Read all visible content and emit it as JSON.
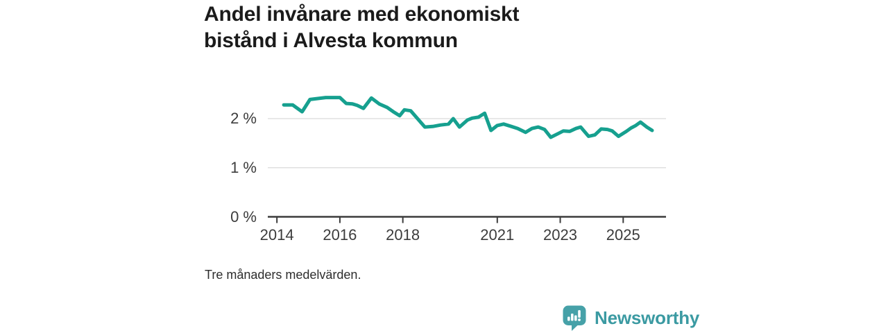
{
  "header": {
    "title_line1": "Andel invånare med ekonomiskt",
    "title_line2": "bistånd i Alvesta kommun"
  },
  "footnote": "Tre månaders medelvärden.",
  "branding": {
    "name": "Newsworthy",
    "icon": "newsworthy-speech-bubble-bar-chart-icon",
    "bubble_color": "#46a1a8",
    "text_color": "#3b9aa2"
  },
  "chart_data": {
    "type": "line",
    "title": "Andel invånare med ekonomiskt bistånd i Alvesta kommun",
    "unit": "%",
    "note": "Tre månaders medelvärden.",
    "legend": "none",
    "grid": "horizontal",
    "x_range": [
      2013.71,
      2026.36
    ],
    "y_range": [
      0,
      2.85
    ],
    "x_ticks": [
      {
        "value": 2014,
        "label": "2014"
      },
      {
        "value": 2016,
        "label": "2016"
      },
      {
        "value": 2018,
        "label": "2018"
      },
      {
        "value": 2021,
        "label": "2021"
      },
      {
        "value": 2023,
        "label": "2023"
      },
      {
        "value": 2025,
        "label": "2025"
      }
    ],
    "y_ticks": [
      {
        "value": 0,
        "label": "0 %"
      },
      {
        "value": 1,
        "label": "1 %"
      },
      {
        "value": 2,
        "label": "2 %"
      }
    ],
    "line_color": "#16a08f",
    "grid_color": "#d9d9d9",
    "axis_color": "#3b3b3b",
    "series": [
      {
        "name": "Andel invånare med ekonomiskt bistånd",
        "points": [
          [
            2014.22,
            2.28
          ],
          [
            2014.5,
            2.28
          ],
          [
            2014.65,
            2.21
          ],
          [
            2014.8,
            2.14
          ],
          [
            2015.05,
            2.39
          ],
          [
            2015.3,
            2.41
          ],
          [
            2015.55,
            2.43
          ],
          [
            2016.0,
            2.43
          ],
          [
            2016.2,
            2.31
          ],
          [
            2016.4,
            2.3
          ],
          [
            2016.55,
            2.27
          ],
          [
            2016.75,
            2.21
          ],
          [
            2017.0,
            2.42
          ],
          [
            2017.25,
            2.3
          ],
          [
            2017.5,
            2.23
          ],
          [
            2017.7,
            2.14
          ],
          [
            2017.9,
            2.06
          ],
          [
            2018.05,
            2.18
          ],
          [
            2018.25,
            2.16
          ],
          [
            2018.7,
            1.83
          ],
          [
            2018.95,
            1.84
          ],
          [
            2019.2,
            1.87
          ],
          [
            2019.45,
            1.89
          ],
          [
            2019.6,
            2.0
          ],
          [
            2019.8,
            1.83
          ],
          [
            2020.05,
            1.97
          ],
          [
            2020.2,
            2.01
          ],
          [
            2020.4,
            2.03
          ],
          [
            2020.6,
            2.11
          ],
          [
            2020.8,
            1.76
          ],
          [
            2021.0,
            1.86
          ],
          [
            2021.2,
            1.89
          ],
          [
            2021.45,
            1.84
          ],
          [
            2021.65,
            1.8
          ],
          [
            2021.9,
            1.72
          ],
          [
            2022.1,
            1.8
          ],
          [
            2022.3,
            1.83
          ],
          [
            2022.5,
            1.78
          ],
          [
            2022.7,
            1.62
          ],
          [
            2022.95,
            1.7
          ],
          [
            2023.1,
            1.75
          ],
          [
            2023.3,
            1.74
          ],
          [
            2023.5,
            1.8
          ],
          [
            2023.65,
            1.83
          ],
          [
            2023.9,
            1.64
          ],
          [
            2024.1,
            1.67
          ],
          [
            2024.3,
            1.79
          ],
          [
            2024.5,
            1.78
          ],
          [
            2024.65,
            1.75
          ],
          [
            2024.85,
            1.64
          ],
          [
            2025.1,
            1.74
          ],
          [
            2025.25,
            1.81
          ],
          [
            2025.4,
            1.86
          ],
          [
            2025.55,
            1.93
          ],
          [
            2025.75,
            1.83
          ],
          [
            2025.92,
            1.76
          ]
        ]
      }
    ]
  }
}
